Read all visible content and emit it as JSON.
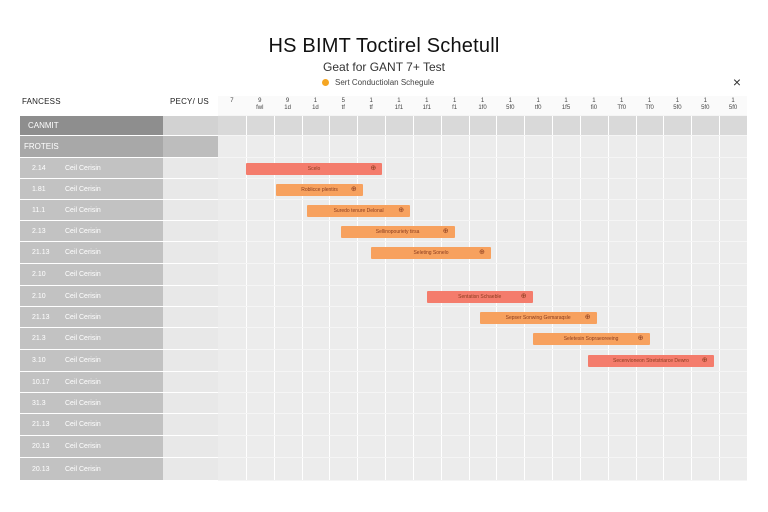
{
  "header": {
    "title": "HS BIMT Toctirel Schetull",
    "subtitle": "Geat for GANT 7+ Test",
    "legend_label": "Sert Conductiolan Schegule",
    "legend_color": "#f5a623",
    "close_icon": "×"
  },
  "columns": {
    "left_header": "FANCESS",
    "mid_header": "PECY/ US",
    "ticks": [
      [
        "7",
        ""
      ],
      [
        "9",
        "fwl"
      ],
      [
        "9",
        "1d"
      ],
      [
        "1",
        "1d"
      ],
      [
        "5",
        "tf"
      ],
      [
        "1",
        "tf"
      ],
      [
        "1",
        "1f1"
      ],
      [
        "1",
        "1f1"
      ],
      [
        "1",
        "f1"
      ],
      [
        "1",
        "1f0"
      ],
      [
        "1",
        "5f0"
      ],
      [
        "1",
        "tf0"
      ],
      [
        "1",
        "1f5"
      ],
      [
        "1",
        "fi0"
      ],
      [
        "1",
        "Tf0"
      ],
      [
        "1",
        "Tf0"
      ],
      [
        "1",
        "5f0"
      ],
      [
        "1",
        "5f0"
      ],
      [
        "1",
        "5f0"
      ]
    ]
  },
  "rows": [
    {
      "type": "group",
      "label": "CANMIT"
    },
    {
      "type": "subgroup",
      "label": "FROTEIS"
    },
    {
      "type": "task",
      "num": "2.14",
      "name": "Ceil Cerisin"
    },
    {
      "type": "task",
      "num": "1.81",
      "name": "Ceil Cerisin"
    },
    {
      "type": "task",
      "num": "11.1",
      "name": "Ceil Cerisin"
    },
    {
      "type": "task",
      "num": "2.13",
      "name": "Ceil Cerisin"
    },
    {
      "type": "task",
      "num": "21.13",
      "name": "Ceil Cerisin"
    },
    {
      "type": "task",
      "num": "2.10",
      "name": "Ceil Cerisin"
    },
    {
      "type": "task",
      "num": "2.10",
      "name": "Ceil Cerisin"
    },
    {
      "type": "task",
      "num": "21.13",
      "name": "Ceil Cerisin"
    },
    {
      "type": "task",
      "num": "21.3",
      "name": "Ceil Cerisin"
    },
    {
      "type": "task",
      "num": "3.10",
      "name": "Ceil Cerisin"
    },
    {
      "type": "task",
      "num": "10.17",
      "name": "Ceil Cerisin"
    },
    {
      "type": "task",
      "num": "31.3",
      "name": "Ceil Cerisin"
    },
    {
      "type": "task",
      "num": "21.13",
      "name": "Ceil Cerisin"
    },
    {
      "type": "task",
      "num": "20.13",
      "name": "Ceil Cerisin"
    },
    {
      "type": "task",
      "num": "20.13",
      "name": "Ceil Cerisin"
    }
  ],
  "bars": [
    {
      "row": 2,
      "start": 1.0,
      "end": 5.9,
      "label": "Scelo",
      "color": "#f47c6c"
    },
    {
      "row": 3,
      "start": 2.1,
      "end": 5.2,
      "label": "Roblicce plentirs",
      "color": "#f7a15e"
    },
    {
      "row": 4,
      "start": 3.2,
      "end": 6.9,
      "label": "Suredo tenure Delonal",
      "color": "#f7a15e"
    },
    {
      "row": 5,
      "start": 4.4,
      "end": 8.5,
      "label": "Sellinopouriety tirsa",
      "color": "#f7a15e"
    },
    {
      "row": 6,
      "start": 5.5,
      "end": 9.8,
      "label": "Seleting Sonelo",
      "color": "#f7a15e"
    },
    {
      "row": 8,
      "start": 7.5,
      "end": 11.3,
      "label": "Sentatisn Schaeble",
      "color": "#f47c6c"
    },
    {
      "row": 9,
      "start": 9.4,
      "end": 13.6,
      "label": "Sepser Sonwing Gemaraqsle",
      "color": "#f7a15e"
    },
    {
      "row": 10,
      "start": 11.3,
      "end": 15.5,
      "label": "Seletesin Sopraeoreeing",
      "color": "#f7a15e"
    },
    {
      "row": 11,
      "start": 13.3,
      "end": 17.8,
      "label": "Secenvioneon Stretstriarce Dewro",
      "color": "#f47c6c"
    }
  ]
}
